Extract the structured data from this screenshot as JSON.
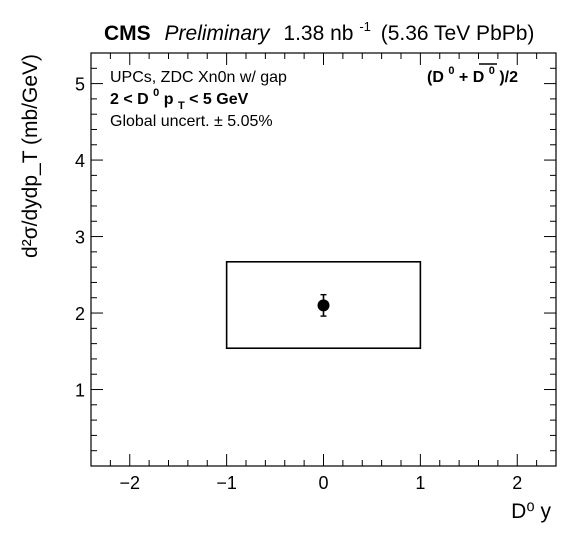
{
  "header": {
    "experiment": "CMS",
    "status": "Preliminary",
    "lumi_value": "1.38 nb",
    "lumi_exp": "-1",
    "system": "(5.36 TeV PbPb)"
  },
  "annotations": {
    "line1": "UPCs, ZDC Xn0n w/ gap",
    "line2_prefix": "2 < D",
    "line2_sup": "0",
    "line2_mid": " p",
    "line2_sub": "T",
    "line2_suffix": " < 5 GeV",
    "line3": "Global uncert. ± 5.05%",
    "species_open": "(D",
    "species_sup1": "0",
    "species_plus": " + ",
    "species_bar": "D",
    "species_sup2": "0",
    "species_close": ")/2"
  },
  "chart_data": {
    "type": "scatter",
    "xlabel": "D⁰ y",
    "ylabel": "d²σ/dydp_T (mb/GeV)",
    "xlim": [
      -2.4,
      2.4
    ],
    "ylim": [
      0,
      5.4
    ],
    "x_ticks": [
      -2,
      -1,
      0,
      1,
      2
    ],
    "x_tick_labels": [
      "−2",
      "−1",
      "0",
      "1",
      "2"
    ],
    "y_ticks": [
      1,
      2,
      3,
      4,
      5
    ],
    "y_tick_labels": [
      "1",
      "2",
      "3",
      "4",
      "5"
    ],
    "grid": false,
    "points": [
      {
        "x": 0,
        "y": 2.1,
        "stat_err": 0.14,
        "sys_box": {
          "x_low": -1,
          "x_high": 1,
          "y_low": 1.54,
          "y_high": 2.67
        }
      }
    ]
  },
  "colors": {
    "axis": "#000000",
    "marker": "#000000",
    "background": "#ffffff"
  }
}
